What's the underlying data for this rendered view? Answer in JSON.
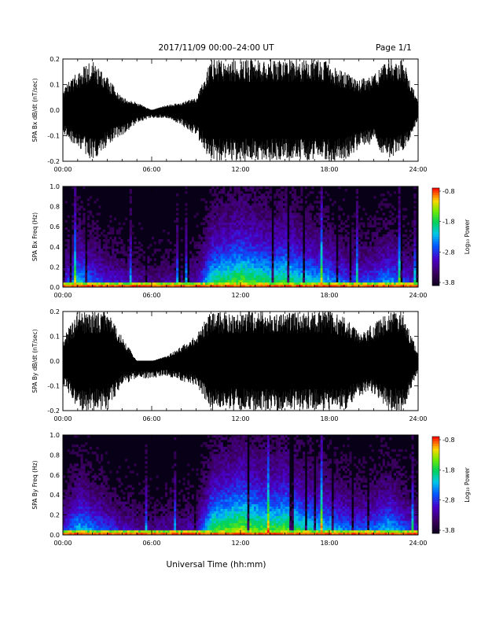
{
  "header": {
    "title": "2017/11/09  00:00–24:00 UT",
    "page_label": "Page 1/1"
  },
  "xaxis": {
    "label": "Universal Time (hh:mm)",
    "ticks": [
      "00:00",
      "06:00",
      "12:00",
      "18:00",
      "24:00"
    ]
  },
  "colorbar": {
    "label": "Log₁₀ Power",
    "ticks": [
      "-0.8",
      "-1.8",
      "-2.8",
      "-3.8"
    ]
  },
  "chart_data": [
    {
      "type": "line",
      "ylabel": "SPA Bx dB/dt (nT/sec)",
      "xlim": [
        0,
        24
      ],
      "ylim": [
        -0.2,
        0.2
      ],
      "ytick_labels": [
        "0.2",
        "0.1",
        "0.0",
        "-0.1",
        "-0.2"
      ],
      "x_units": "hours UT",
      "envelope": {
        "x": [
          0,
          1,
          2,
          3,
          4,
          5,
          6,
          7,
          8,
          9,
          10,
          11,
          12,
          13,
          14,
          15,
          16,
          17,
          18,
          19,
          20,
          21,
          22,
          23,
          24
        ],
        "max": [
          0.09,
          0.15,
          0.2,
          0.13,
          0.05,
          0.03,
          0.0,
          0.02,
          0.03,
          0.05,
          0.2,
          0.2,
          0.2,
          0.2,
          0.2,
          0.2,
          0.2,
          0.2,
          0.19,
          0.15,
          0.12,
          0.14,
          0.2,
          0.2,
          0.03
        ],
        "min": [
          -0.09,
          -0.15,
          -0.2,
          -0.14,
          -0.1,
          -0.05,
          -0.03,
          -0.03,
          -0.06,
          -0.1,
          -0.2,
          -0.2,
          -0.2,
          -0.2,
          -0.2,
          -0.2,
          -0.2,
          -0.2,
          -0.2,
          -0.2,
          -0.15,
          -0.13,
          -0.2,
          -0.17,
          -0.04
        ]
      }
    },
    {
      "type": "heatmap",
      "ylabel": "SPA Bx Freq (Hz)",
      "xlim": [
        0,
        24
      ],
      "ylim": [
        0,
        1.0
      ],
      "ytick_labels": [
        "1.0",
        "0.8",
        "0.6",
        "0.4",
        "0.2",
        "0.0"
      ],
      "z_range": [
        -3.8,
        -0.8
      ],
      "activity_hourly": [
        0.35,
        0.6,
        0.45,
        0.35,
        0.3,
        0.25,
        0.2,
        0.25,
        0.22,
        0.3,
        0.7,
        0.75,
        0.8,
        0.75,
        0.7,
        0.75,
        0.65,
        0.6,
        0.55,
        0.45,
        0.4,
        0.45,
        0.55,
        0.4,
        0.3
      ]
    },
    {
      "type": "line",
      "ylabel": "SPA By dB/dt (nT/sec)",
      "xlim": [
        0,
        24
      ],
      "ylim": [
        -0.2,
        0.2
      ],
      "ytick_labels": [
        "0.2",
        "0.1",
        "0.0",
        "-0.1",
        "-0.2"
      ],
      "x_units": "hours UT",
      "envelope": {
        "x": [
          0,
          1,
          2,
          3,
          4,
          5,
          6,
          7,
          8,
          9,
          10,
          11,
          12,
          13,
          14,
          15,
          16,
          17,
          18,
          19,
          20,
          21,
          22,
          23,
          24
        ],
        "max": [
          0.09,
          0.2,
          0.2,
          0.2,
          0.1,
          0.0,
          0.0,
          0.02,
          0.06,
          0.11,
          0.2,
          0.2,
          0.2,
          0.2,
          0.2,
          0.2,
          0.2,
          0.2,
          0.2,
          0.18,
          0.12,
          0.15,
          0.2,
          0.2,
          0.03
        ],
        "min": [
          -0.09,
          -0.2,
          -0.2,
          -0.2,
          -0.1,
          -0.07,
          -0.07,
          -0.06,
          -0.08,
          -0.1,
          -0.2,
          -0.2,
          -0.2,
          -0.2,
          -0.2,
          -0.2,
          -0.2,
          -0.2,
          -0.2,
          -0.2,
          -0.14,
          -0.13,
          -0.2,
          -0.2,
          -0.04
        ]
      }
    },
    {
      "type": "heatmap",
      "ylabel": "SPA By Freq (Hz)",
      "xlim": [
        0,
        24
      ],
      "ylim": [
        0,
        1.0
      ],
      "ytick_labels": [
        "1.0",
        "0.8",
        "0.6",
        "0.4",
        "0.2",
        "0.0"
      ],
      "z_range": [
        -3.8,
        -0.8
      ],
      "activity_hourly": [
        0.35,
        0.6,
        0.5,
        0.4,
        0.3,
        0.25,
        0.2,
        0.25,
        0.25,
        0.3,
        0.75,
        0.8,
        0.85,
        0.8,
        0.75,
        0.8,
        0.7,
        0.65,
        0.6,
        0.5,
        0.45,
        0.5,
        0.6,
        0.45,
        0.3
      ]
    }
  ]
}
